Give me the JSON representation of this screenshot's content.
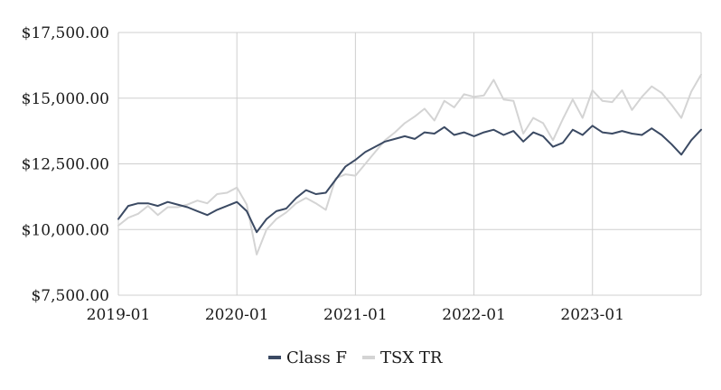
{
  "chart_data": {
    "type": "line",
    "title": "",
    "xlabel": "",
    "ylabel": "",
    "ylim": [
      7500,
      17500
    ],
    "xlim": [
      "2019-01",
      "2023-12"
    ],
    "grid": true,
    "legend_placement": "bottom-center",
    "y_ticks": [
      7500,
      10000,
      12500,
      15000,
      17500
    ],
    "y_tick_labels": [
      "$7,500.00",
      "$10,000.00",
      "$12,500.00",
      "$15,000.00",
      "$17,500.00"
    ],
    "x_ticks": [
      "2019-01",
      "2020-01",
      "2021-01",
      "2022-01",
      "2023-01"
    ],
    "x_tick_labels": [
      "2019-01",
      "2020-01",
      "2021-01",
      "2022-01",
      "2023-01"
    ],
    "x": [
      "2019-01",
      "2019-02",
      "2019-03",
      "2019-04",
      "2019-05",
      "2019-06",
      "2019-07",
      "2019-08",
      "2019-09",
      "2019-10",
      "2019-11",
      "2019-12",
      "2020-01",
      "2020-02",
      "2020-03",
      "2020-04",
      "2020-05",
      "2020-06",
      "2020-07",
      "2020-08",
      "2020-09",
      "2020-10",
      "2020-11",
      "2020-12",
      "2021-01",
      "2021-02",
      "2021-03",
      "2021-04",
      "2021-05",
      "2021-06",
      "2021-07",
      "2021-08",
      "2021-09",
      "2021-10",
      "2021-11",
      "2021-12",
      "2022-01",
      "2022-02",
      "2022-03",
      "2022-04",
      "2022-05",
      "2022-06",
      "2022-07",
      "2022-08",
      "2022-09",
      "2022-10",
      "2022-11",
      "2022-12",
      "2023-01",
      "2023-02",
      "2023-03",
      "2023-04",
      "2023-05",
      "2023-06",
      "2023-07",
      "2023-08",
      "2023-09",
      "2023-10",
      "2023-11",
      "2023-12"
    ],
    "series": [
      {
        "name": "Class F",
        "color": "#3b4a63",
        "values": [
          10400,
          10900,
          11000,
          11000,
          10900,
          11050,
          10950,
          10850,
          10700,
          10550,
          10750,
          10900,
          11050,
          10700,
          9900,
          10400,
          10700,
          10800,
          11200,
          11500,
          11350,
          11400,
          11900,
          12400,
          12650,
          12950,
          13150,
          13350,
          13450,
          13550,
          13450,
          13700,
          13650,
          13900,
          13600,
          13700,
          13550,
          13700,
          13800,
          13600,
          13750,
          13350,
          13700,
          13550,
          13150,
          13300,
          13800,
          13600,
          13950,
          13700,
          13650,
          13750,
          13650,
          13600,
          13850,
          13600,
          13250,
          12850,
          13400,
          13800
        ]
      },
      {
        "name": "TSX TR",
        "color": "#d4d4d4",
        "values": [
          10150,
          10450,
          10600,
          10900,
          10550,
          10850,
          10850,
          10950,
          11100,
          11000,
          11350,
          11400,
          11600,
          10950,
          9050,
          10000,
          10400,
          10650,
          11000,
          11200,
          11000,
          10750,
          11950,
          12100,
          12050,
          12500,
          12950,
          13400,
          13700,
          14050,
          14300,
          14600,
          14150,
          14900,
          14650,
          15150,
          15050,
          15100,
          15700,
          14950,
          14900,
          13650,
          14250,
          14050,
          13400,
          14200,
          14950,
          14250,
          15300,
          14900,
          14850,
          15300,
          14550,
          15050,
          15450,
          15200,
          14750,
          14250,
          15250,
          15900
        ]
      }
    ]
  }
}
